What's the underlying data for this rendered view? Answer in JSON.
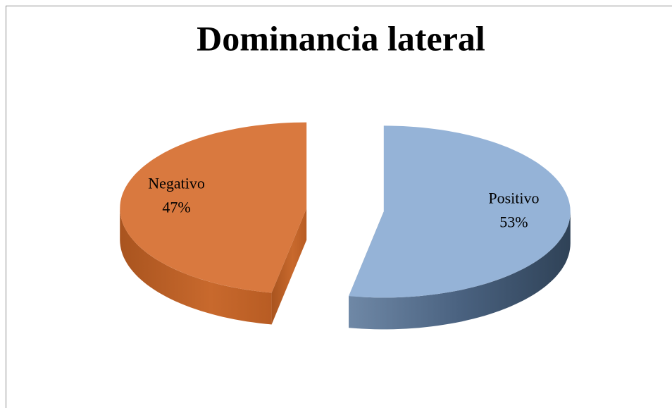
{
  "chart_data": {
    "type": "pie",
    "title": "Dominancia lateral",
    "categories": [
      "Positivo",
      "Negativo"
    ],
    "values": [
      53,
      47
    ],
    "value_labels": [
      "53%",
      "47%"
    ],
    "colors": [
      "#95b3d7",
      "#d9793f"
    ],
    "exploded": true,
    "three_d": true
  }
}
